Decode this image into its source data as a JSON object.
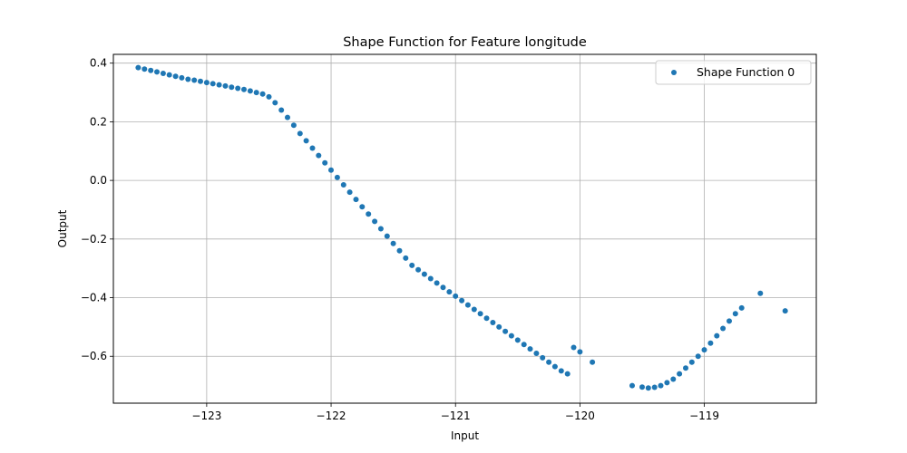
{
  "chart_data": {
    "type": "scatter",
    "title": "Shape Function for Feature longitude",
    "xlabel": "Input",
    "ylabel": "Output",
    "xlim": [
      -123.75,
      -118.1
    ],
    "ylim": [
      -0.76,
      0.43
    ],
    "xticks": [
      -123,
      -122,
      -121,
      -120,
      -119
    ],
    "xtick_labels": [
      "−123",
      "−122",
      "−121",
      "−120",
      "−119"
    ],
    "yticks": [
      0.4,
      0.2,
      0.0,
      -0.2,
      -0.4,
      -0.6
    ],
    "ytick_labels": [
      "0.4",
      "0.2",
      "0.0",
      "−0.2",
      "−0.4",
      "−0.6"
    ],
    "grid": true,
    "legend_position": "top-right",
    "series": [
      {
        "name": "Shape Function 0",
        "color": "#1f77b4",
        "points": [
          [
            -123.55,
            0.385
          ],
          [
            -123.5,
            0.38
          ],
          [
            -123.45,
            0.375
          ],
          [
            -123.4,
            0.37
          ],
          [
            -123.35,
            0.365
          ],
          [
            -123.3,
            0.36
          ],
          [
            -123.25,
            0.355
          ],
          [
            -123.2,
            0.35
          ],
          [
            -123.15,
            0.345
          ],
          [
            -123.1,
            0.342
          ],
          [
            -123.05,
            0.338
          ],
          [
            -123.0,
            0.334
          ],
          [
            -122.95,
            0.33
          ],
          [
            -122.9,
            0.326
          ],
          [
            -122.85,
            0.322
          ],
          [
            -122.8,
            0.318
          ],
          [
            -122.75,
            0.314
          ],
          [
            -122.7,
            0.31
          ],
          [
            -122.65,
            0.305
          ],
          [
            -122.6,
            0.3
          ],
          [
            -122.55,
            0.295
          ],
          [
            -122.5,
            0.285
          ],
          [
            -122.45,
            0.265
          ],
          [
            -122.4,
            0.24
          ],
          [
            -122.35,
            0.215
          ],
          [
            -122.3,
            0.188
          ],
          [
            -122.25,
            0.16
          ],
          [
            -122.2,
            0.135
          ],
          [
            -122.15,
            0.11
          ],
          [
            -122.1,
            0.085
          ],
          [
            -122.05,
            0.06
          ],
          [
            -122.0,
            0.035
          ],
          [
            -121.95,
            0.01
          ],
          [
            -121.9,
            -0.015
          ],
          [
            -121.85,
            -0.04
          ],
          [
            -121.8,
            -0.065
          ],
          [
            -121.75,
            -0.09
          ],
          [
            -121.7,
            -0.115
          ],
          [
            -121.65,
            -0.14
          ],
          [
            -121.6,
            -0.165
          ],
          [
            -121.55,
            -0.19
          ],
          [
            -121.5,
            -0.215
          ],
          [
            -121.45,
            -0.24
          ],
          [
            -121.4,
            -0.265
          ],
          [
            -121.35,
            -0.29
          ],
          [
            -121.3,
            -0.305
          ],
          [
            -121.25,
            -0.32
          ],
          [
            -121.2,
            -0.335
          ],
          [
            -121.15,
            -0.35
          ],
          [
            -121.1,
            -0.365
          ],
          [
            -121.05,
            -0.38
          ],
          [
            -121.0,
            -0.395
          ],
          [
            -120.95,
            -0.41
          ],
          [
            -120.9,
            -0.425
          ],
          [
            -120.85,
            -0.44
          ],
          [
            -120.8,
            -0.455
          ],
          [
            -120.75,
            -0.47
          ],
          [
            -120.7,
            -0.485
          ],
          [
            -120.65,
            -0.5
          ],
          [
            -120.6,
            -0.515
          ],
          [
            -120.55,
            -0.53
          ],
          [
            -120.5,
            -0.545
          ],
          [
            -120.45,
            -0.56
          ],
          [
            -120.4,
            -0.575
          ],
          [
            -120.35,
            -0.59
          ],
          [
            -120.3,
            -0.605
          ],
          [
            -120.25,
            -0.62
          ],
          [
            -120.2,
            -0.635
          ],
          [
            -120.15,
            -0.65
          ],
          [
            -120.1,
            -0.66
          ],
          [
            -120.05,
            -0.57
          ],
          [
            -120.0,
            -0.585
          ],
          [
            -119.9,
            -0.62
          ],
          [
            -119.58,
            -0.7
          ],
          [
            -119.5,
            -0.705
          ],
          [
            -119.45,
            -0.708
          ],
          [
            -119.4,
            -0.706
          ],
          [
            -119.35,
            -0.7
          ],
          [
            -119.3,
            -0.69
          ],
          [
            -119.25,
            -0.678
          ],
          [
            -119.2,
            -0.66
          ],
          [
            -119.15,
            -0.64
          ],
          [
            -119.1,
            -0.62
          ],
          [
            -119.05,
            -0.6
          ],
          [
            -119.0,
            -0.578
          ],
          [
            -118.95,
            -0.555
          ],
          [
            -118.9,
            -0.53
          ],
          [
            -118.85,
            -0.505
          ],
          [
            -118.8,
            -0.48
          ],
          [
            -118.75,
            -0.455
          ],
          [
            -118.7,
            -0.435
          ],
          [
            -118.55,
            -0.385
          ],
          [
            -118.35,
            -0.445
          ]
        ]
      }
    ]
  }
}
